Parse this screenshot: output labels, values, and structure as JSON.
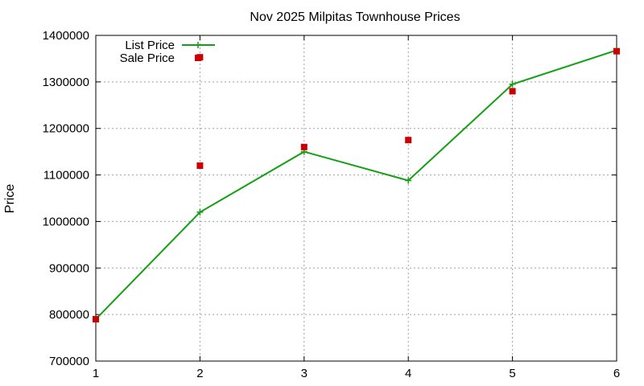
{
  "chart_data": {
    "type": "line",
    "title": "Nov 2025 Milpitas Townhouse Prices",
    "xlabel": "",
    "ylabel": "Price",
    "x": [
      1,
      2,
      3,
      4,
      5,
      6
    ],
    "xlim": [
      1,
      6
    ],
    "ylim": [
      700000,
      1400000
    ],
    "xticks": [
      "1",
      "2",
      "3",
      "4",
      "5",
      "6"
    ],
    "yticks": [
      "700000",
      "800000",
      "900000",
      "1000000",
      "1100000",
      "1200000",
      "1300000",
      "1400000"
    ],
    "grid": true,
    "legend_position": "top-left",
    "series": [
      {
        "name": "List Price",
        "style": "line+cross",
        "color": "#14a014",
        "points": [
          [
            1,
            790000
          ],
          [
            2,
            1020000
          ],
          [
            3,
            1150000
          ],
          [
            4,
            1088000
          ],
          [
            5,
            1295000
          ],
          [
            6,
            1368000
          ]
        ]
      },
      {
        "name": "Sale Price",
        "style": "square",
        "color": "#cc0000",
        "points": [
          [
            1,
            790000
          ],
          [
            2,
            1353000
          ],
          [
            2,
            1120000
          ],
          [
            3,
            1160000
          ],
          [
            4,
            1175000
          ],
          [
            5,
            1280000
          ],
          [
            6,
            1366000
          ]
        ]
      }
    ]
  }
}
